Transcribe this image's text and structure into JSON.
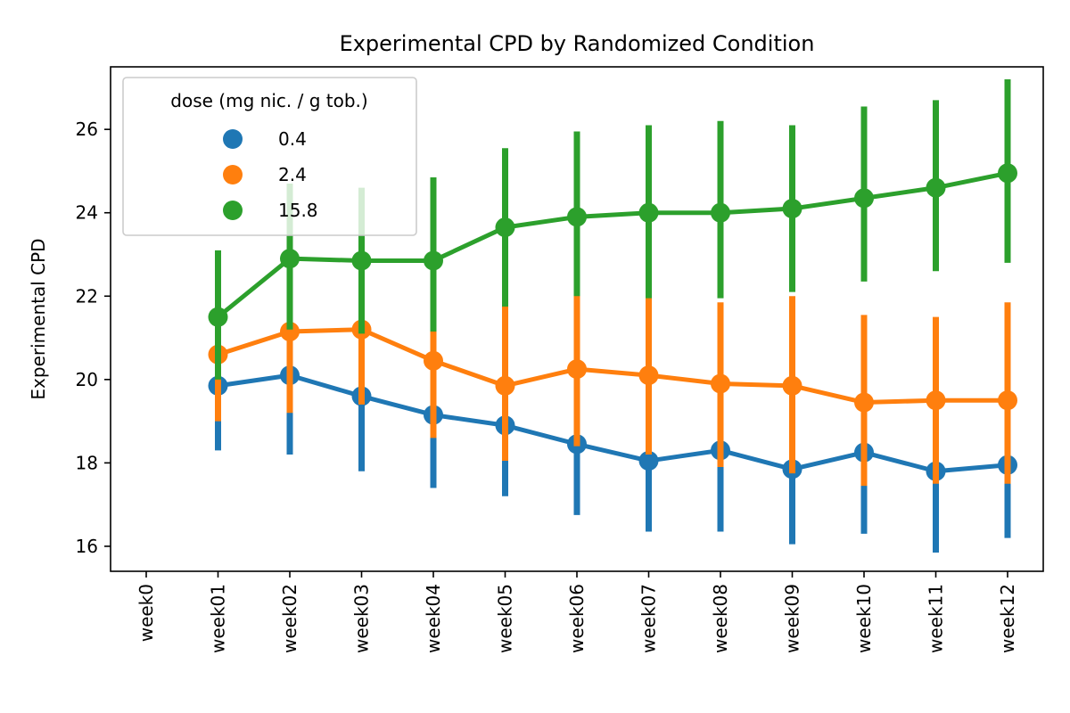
{
  "chart_data": {
    "type": "line",
    "title": "Experimental CPD by Randomized Condition",
    "xlabel": "",
    "ylabel": "Experimental CPD",
    "categories": [
      "week0",
      "week01",
      "week02",
      "week03",
      "week04",
      "week05",
      "week06",
      "week07",
      "week08",
      "week09",
      "week10",
      "week11",
      "week12"
    ],
    "ylim": [
      15.4,
      27.5
    ],
    "yticks": [
      16,
      18,
      20,
      22,
      24,
      26
    ],
    "grid": false,
    "legend": {
      "title": "dose (mg nic. / g tob.)",
      "placement": "upper-left"
    },
    "series": [
      {
        "name": "0.4",
        "color": "#1f77b4",
        "values": [
          null,
          19.85,
          20.1,
          19.6,
          19.15,
          18.9,
          18.45,
          18.05,
          18.3,
          17.85,
          18.25,
          17.8,
          17.95
        ],
        "ci_low": [
          null,
          18.3,
          18.2,
          17.8,
          17.4,
          17.2,
          16.75,
          16.35,
          16.35,
          16.05,
          16.3,
          15.85,
          16.2
        ],
        "ci_high": [
          null,
          20.4,
          21.2,
          20.8,
          20.4,
          20.2,
          20.1,
          19.7,
          20.2,
          19.6,
          20.2,
          19.7,
          19.7
        ]
      },
      {
        "name": "2.4",
        "color": "#ff7f0e",
        "values": [
          null,
          20.6,
          21.15,
          21.2,
          20.45,
          19.85,
          20.25,
          20.1,
          19.9,
          19.85,
          19.45,
          19.5,
          19.5
        ],
        "ci_low": [
          null,
          19.0,
          19.2,
          19.4,
          18.6,
          18.05,
          18.4,
          18.2,
          17.9,
          17.75,
          17.45,
          17.5,
          17.5
        ],
        "ci_high": [
          null,
          22.1,
          23.1,
          23.2,
          22.3,
          21.8,
          22.05,
          22.0,
          21.85,
          22.0,
          21.55,
          21.5,
          21.85
        ]
      },
      {
        "name": "15.8",
        "color": "#2ca02c",
        "values": [
          null,
          21.5,
          22.9,
          22.85,
          22.85,
          23.65,
          23.9,
          24.0,
          24.0,
          24.1,
          24.35,
          24.6,
          24.95
        ],
        "ci_low": [
          null,
          20.0,
          21.2,
          21.1,
          21.15,
          21.75,
          22.0,
          21.95,
          21.95,
          22.1,
          22.35,
          22.6,
          22.8
        ],
        "ci_high": [
          null,
          23.1,
          24.7,
          24.6,
          24.85,
          25.55,
          25.95,
          26.1,
          26.2,
          26.1,
          26.55,
          26.7,
          27.2
        ]
      }
    ]
  }
}
